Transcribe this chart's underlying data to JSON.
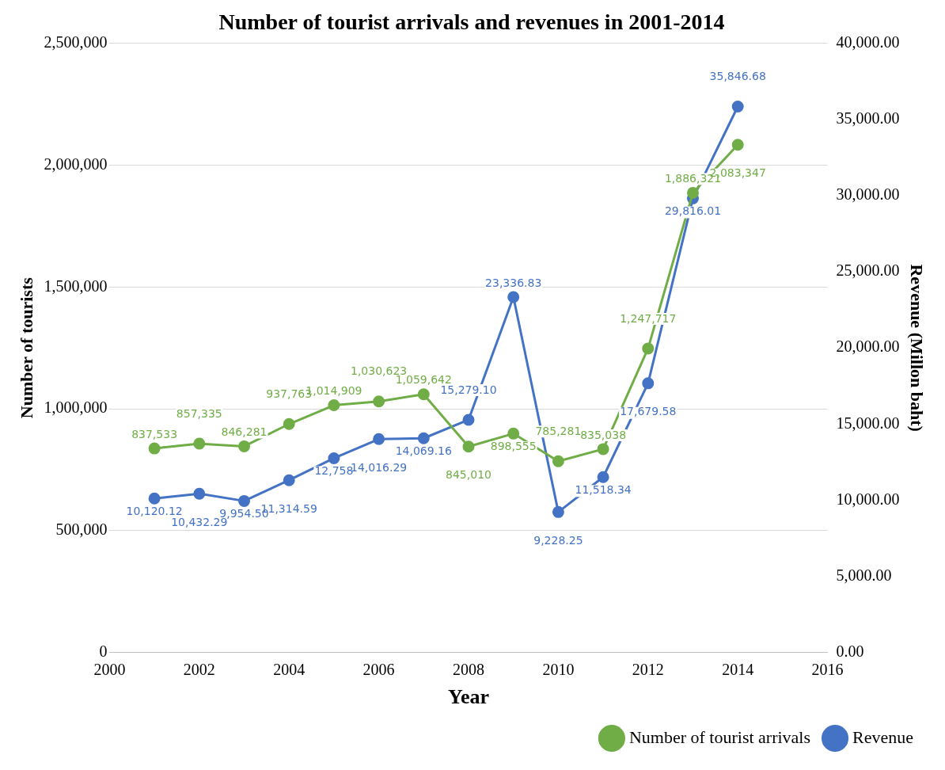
{
  "chart_data": {
    "type": "line",
    "title": "Number of tourist arrivals and revenues in 2001-2014",
    "xlabel": "Year",
    "ylabel": "Number of tourists",
    "y2label": "Revenue (Millon baht)",
    "x": [
      2001,
      2002,
      2003,
      2004,
      2005,
      2006,
      2007,
      2008,
      2009,
      2010,
      2011,
      2012,
      2013,
      2014
    ],
    "series": [
      {
        "name": "Number of tourist arrivals",
        "color": "#70ad47",
        "values": [
          837533,
          857335,
          846281,
          937763,
          1014909,
          1030623,
          1059642,
          845010,
          898555,
          785281,
          835038,
          1247717,
          1886321,
          2083347
        ],
        "value_labels": [
          "837,533",
          "857,335",
          "846,281",
          "937,763",
          "1,014,909",
          "1,030,623",
          "1,059,642",
          "845,010",
          "898,555",
          "785,281",
          "835,038",
          "1,247,717",
          "1,886,321",
          "2,083,347"
        ]
      },
      {
        "name": "Revenue",
        "color": "#4472c4",
        "axis": "y2",
        "values": [
          10120.12,
          10432.29,
          9954.5,
          11314.59,
          12758,
          14016.29,
          14069.16,
          15279.1,
          23336.83,
          9228.25,
          11518.34,
          17679.58,
          29816.01,
          35846.68
        ],
        "value_labels": [
          "10,120.12",
          "10,432.29",
          "9,954.50",
          "11,314.59",
          "12,758",
          "14,016.29",
          "14,069.16",
          "15,279.10",
          "23,336.83",
          "9,228.25",
          "11,518.34",
          "17,679.58",
          "29,816.01",
          "35,846.68"
        ]
      }
    ],
    "xlim": [
      2000,
      2016
    ],
    "xticks": [
      2000,
      2002,
      2004,
      2006,
      2008,
      2010,
      2012,
      2014,
      2016
    ],
    "ylim": [
      0,
      2500000
    ],
    "yticks": [
      0,
      {
        "value": 500000,
        "label": "500,000"
      },
      {
        "value": 1000000,
        "label": "1,000,000"
      },
      {
        "value": 1500000,
        "label": "1,500,000"
      },
      {
        "value": 2000000,
        "label": "2,000,000"
      },
      {
        "value": 2500000,
        "label": "2,500,000"
      }
    ],
    "y2lim": [
      0,
      40000
    ],
    "y2ticks": [
      {
        "value": 0,
        "label": "0.00"
      },
      {
        "value": 5000,
        "label": "5,000.00"
      },
      {
        "value": 10000,
        "label": "10,000.00"
      },
      {
        "value": 15000,
        "label": "15,000.00"
      },
      {
        "value": 20000,
        "label": "20,000.00"
      },
      {
        "value": 25000,
        "label": "25,000.00"
      },
      {
        "value": 30000,
        "label": "30,000.00"
      },
      {
        "value": 35000,
        "label": "35,000.00"
      },
      {
        "value": 40000,
        "label": "40,000.00"
      }
    ],
    "grid": "y",
    "legend": "bottom right",
    "marker": "circle",
    "line_style": "solid"
  }
}
